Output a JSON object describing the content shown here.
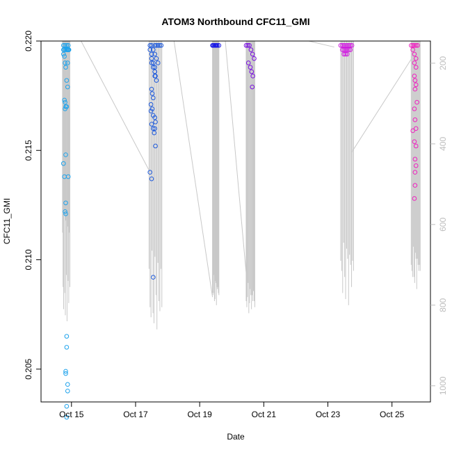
{
  "chart_data": {
    "type": "scatter",
    "title": "ATOM3 Northbound CFC11_GMI",
    "xlabel": "Date",
    "ylabel": "CFC11_GMI",
    "x_range_days": [
      14.05,
      26.2
    ],
    "ylim": [
      0.2035,
      0.22
    ],
    "y_ticks": [
      {
        "value": 0.205,
        "label": "0.205"
      },
      {
        "value": 0.21,
        "label": "0.210"
      },
      {
        "value": 0.215,
        "label": "0.215"
      },
      {
        "value": 0.22,
        "label": "0.220"
      }
    ],
    "x_ticks": [
      {
        "day": 15,
        "label": "Oct 15"
      },
      {
        "day": 17,
        "label": "Oct 17"
      },
      {
        "day": 19,
        "label": "Oct 19"
      },
      {
        "day": 21,
        "label": "Oct 21"
      },
      {
        "day": 23,
        "label": "Oct 23"
      },
      {
        "day": 25,
        "label": "Oct 25"
      }
    ],
    "right_axis": {
      "color": "#bdbdbd",
      "range": [
        1040,
        145
      ],
      "ticks": [
        200,
        400,
        600,
        800,
        1000
      ]
    },
    "grid": false,
    "series": [
      {
        "color": "#1fa3ec",
        "x": [
          14.75,
          14.8,
          14.85,
          14.9,
          14.75,
          14.78,
          14.8,
          14.82,
          14.85,
          14.88,
          14.78,
          14.8,
          14.82,
          14.85,
          14.8,
          14.82,
          14.75,
          14.78,
          14.9,
          14.82,
          14.8,
          14.82,
          14.85,
          14.82,
          14.85,
          14.85,
          14.82,
          14.88,
          14.88,
          14.85,
          14.88,
          14.9,
          14.75,
          14.78,
          14.82,
          14.85,
          14.88,
          14.9,
          14.92
        ],
        "y": [
          0.2198,
          0.2198,
          0.2198,
          0.2198,
          0.2194,
          0.2193,
          0.219,
          0.2188,
          0.2182,
          0.2179,
          0.2173,
          0.2172,
          0.217,
          0.217,
          0.2169,
          0.2148,
          0.2144,
          0.2138,
          0.2138,
          0.2126,
          0.2122,
          0.2121,
          0.2065,
          0.2049,
          0.2033,
          0.2028,
          0.2048,
          0.2043,
          0.204,
          0.206,
          0.219,
          0.2196,
          0.2196,
          0.2196,
          0.2196,
          0.2196,
          0.2196,
          0.2196,
          0.2196
        ]
      },
      {
        "color": "#1f5bdc",
        "x": [
          17.45,
          17.45,
          17.5,
          17.5,
          17.55,
          17.6,
          17.6,
          17.62,
          17.65,
          17.5,
          17.52,
          17.55,
          17.48,
          17.52,
          17.55,
          17.6,
          17.62,
          17.45,
          17.5,
          17.55,
          17.6,
          17.65,
          17.7,
          17.75,
          17.8,
          17.5,
          17.55,
          17.6,
          17.65,
          17.7,
          17.55,
          17.6,
          17.48,
          17.5,
          17.58,
          17.62,
          17.5,
          17.55,
          17.6,
          17.6
        ],
        "y": [
          0.2198,
          0.2196,
          0.2194,
          0.2192,
          0.219,
          0.2188,
          0.2186,
          0.2184,
          0.2182,
          0.2178,
          0.2176,
          0.2174,
          0.2171,
          0.2169,
          0.2166,
          0.2165,
          0.2163,
          0.214,
          0.2137,
          0.2092,
          0.2198,
          0.2198,
          0.2198,
          0.2198,
          0.2198,
          0.2198,
          0.2196,
          0.2194,
          0.2192,
          0.219,
          0.216,
          0.216,
          0.2168,
          0.2162,
          0.2158,
          0.2152,
          0.219,
          0.2188,
          0.2186,
          0.2184
        ]
      },
      {
        "color": "#1a1ae6",
        "x": [
          19.4,
          19.45,
          19.5,
          19.55,
          19.6,
          19.42,
          19.48,
          19.52
        ],
        "y": [
          0.2198,
          0.2198,
          0.2198,
          0.2198,
          0.2198,
          0.2198,
          0.2198,
          0.2198
        ]
      },
      {
        "color": "#7a10e0",
        "x": [
          20.45,
          20.5,
          20.55,
          20.6,
          20.65,
          20.7,
          20.52,
          20.58,
          20.62,
          20.66,
          20.64
        ],
        "y": [
          0.2198,
          0.2198,
          0.2198,
          0.2196,
          0.2194,
          0.2192,
          0.219,
          0.2188,
          0.2186,
          0.2184,
          0.2179
        ]
      },
      {
        "color": "#d01ce0",
        "x": [
          23.4,
          23.45,
          23.5,
          23.55,
          23.6,
          23.65,
          23.7,
          23.75,
          23.45,
          23.5,
          23.55,
          23.6,
          23.65,
          23.7,
          23.5,
          23.55,
          23.6
        ],
        "y": [
          0.2198,
          0.2198,
          0.2198,
          0.2198,
          0.2198,
          0.2198,
          0.2198,
          0.2198,
          0.2196,
          0.2196,
          0.2196,
          0.2196,
          0.2196,
          0.2196,
          0.2194,
          0.2194,
          0.2194
        ]
      },
      {
        "color": "#f020c0",
        "x": [
          25.6,
          25.65,
          25.7,
          25.75,
          25.8,
          25.65,
          25.7,
          25.75,
          25.7,
          25.75,
          25.7,
          25.72,
          25.75,
          25.72,
          25.78,
          25.7,
          25.72,
          25.75,
          25.65,
          25.7,
          25.75,
          25.72,
          25.75,
          25.72,
          25.72,
          25.7
        ],
        "y": [
          0.2198,
          0.2198,
          0.2198,
          0.2198,
          0.2198,
          0.2196,
          0.2194,
          0.2192,
          0.219,
          0.2188,
          0.2184,
          0.2182,
          0.218,
          0.2178,
          0.2172,
          0.2169,
          0.2164,
          0.216,
          0.2159,
          0.2154,
          0.2152,
          0.2146,
          0.2143,
          0.214,
          0.2134,
          0.2128
        ]
      }
    ]
  }
}
